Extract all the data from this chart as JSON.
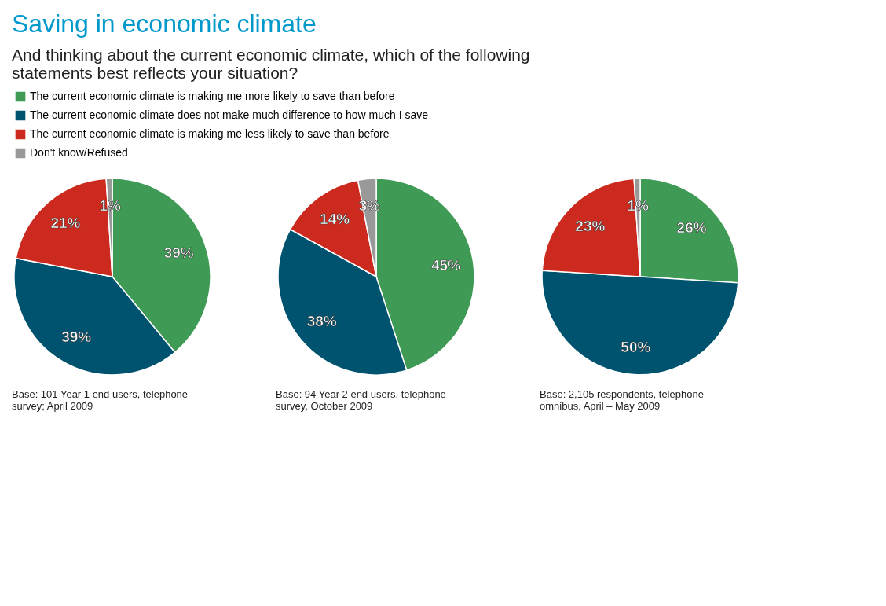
{
  "chart_data": [
    {
      "type": "pie",
      "title": "Saving in economic climate",
      "subtitle": "And thinking about the current economic climate, which of the following statements best reflects your situation?",
      "legend": "top",
      "categories": [
        "The current economic climate is making me more likely to save than before",
        "The current economic climate does not make much difference to how much I save",
        "The current economic climate is making me less likely to save than before",
        "Don't know/Refused"
      ],
      "values": [
        39,
        39,
        21,
        1
      ],
      "value_labels": [
        "39%",
        "39%",
        "21%",
        "1%"
      ],
      "colors": [
        "#3e9a55",
        "#00536f",
        "#cc2a1e",
        "#999999"
      ],
      "annotations": [
        "Base: 101 Year 1 end users, telephone survey; April 2009"
      ]
    },
    {
      "type": "pie",
      "values": [
        45,
        38,
        14,
        3
      ],
      "value_labels": [
        "45%",
        "38%",
        "14%",
        "3%"
      ],
      "colors": [
        "#3e9a55",
        "#00536f",
        "#cc2a1e",
        "#999999"
      ],
      "annotations": [
        "Base: 94 Year 2 end users, telephone survey, October 2009"
      ]
    },
    {
      "type": "pie",
      "values": [
        26,
        50,
        23,
        1
      ],
      "value_labels": [
        "26%",
        "50%",
        "23%",
        "1%"
      ],
      "colors": [
        "#3e9a55",
        "#00536f",
        "#cc2a1e",
        "#999999"
      ],
      "annotations": [
        "Base: 2,105 respondents, telephone omnibus, April – May 2009"
      ]
    }
  ]
}
